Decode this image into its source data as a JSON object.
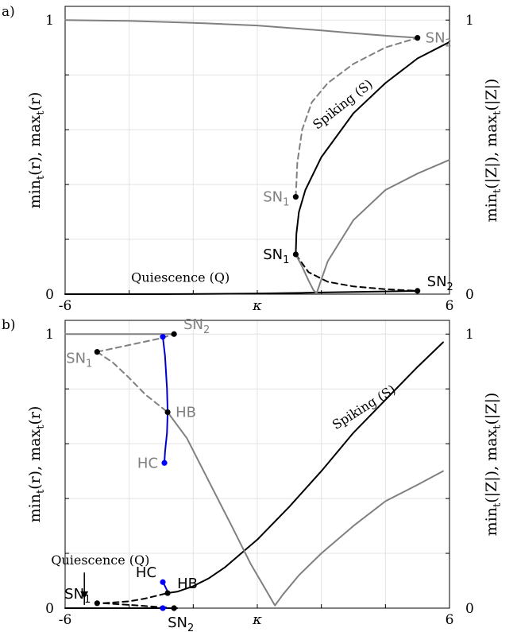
{
  "chart_data": [
    {
      "type": "line",
      "panel_label": "a)",
      "xlabel": "κ",
      "x_ticks": [
        "-6",
        "6"
      ],
      "xlim": [
        -6,
        6
      ],
      "ylabel_left": "min_t(r), max_t(r)",
      "ylabel_left_parts": {
        "pre": "min",
        "sub1": "t",
        "mid": "(r), max",
        "sub2": "t",
        "post": "(r)"
      },
      "y_ticks_left": [
        "0",
        "1"
      ],
      "ylabel_right": "min_t(|Z|), max_t(|Z|)",
      "ylabel_right_parts": {
        "pre": "min",
        "sub1": "t",
        "mid": "(|Z|), max",
        "sub2": "t",
        "post": "(|Z|)"
      },
      "y_ticks_right": [
        "0",
        "1"
      ],
      "ylim": [
        0,
        1.05
      ],
      "grid": true,
      "series": [
        {
          "color": "#000000",
          "dash": false,
          "x": [
            -6,
            -3,
            0,
            1,
            1.5,
            2,
            3,
            4,
            5
          ],
          "y": [
            0,
            0,
            0.002,
            0.004,
            0.005,
            0.006,
            0.008,
            0.01,
            0.012
          ]
        },
        {
          "color": "#000000",
          "dash": true,
          "x": [
            1.2,
            1.6,
            2.2,
            3,
            4,
            5
          ],
          "y": [
            0.145,
            0.08,
            0.045,
            0.028,
            0.018,
            0.012
          ]
        },
        {
          "color": "#000000",
          "dash": false,
          "x": [
            1.2,
            1.22,
            1.3,
            1.5,
            2,
            3,
            4,
            5,
            6
          ],
          "y": [
            0.145,
            0.22,
            0.3,
            0.38,
            0.5,
            0.66,
            0.77,
            0.86,
            0.92
          ]
        },
        {
          "color": "#808080",
          "dash": false,
          "x": [
            -6,
            -4,
            -2,
            0,
            2,
            3,
            4,
            5
          ],
          "y": [
            1,
            0.997,
            0.99,
            0.98,
            0.962,
            0.952,
            0.943,
            0.935
          ]
        },
        {
          "color": "#808080",
          "dash": true,
          "x": [
            1.2,
            1.25,
            1.4,
            1.7,
            2.2,
            3,
            4,
            5
          ],
          "y": [
            0.355,
            0.48,
            0.6,
            0.7,
            0.77,
            0.84,
            0.9,
            0.935
          ]
        },
        {
          "color": "#808080",
          "dash": false,
          "x": [
            1.2,
            1.4,
            1.6,
            1.75,
            1.85,
            2.2,
            3,
            4,
            5,
            6
          ],
          "y": [
            0.145,
            0.1,
            0.05,
            0.015,
            0.003,
            0.12,
            0.27,
            0.38,
            0.44,
            0.49
          ]
        }
      ],
      "points": [
        {
          "label": "SN",
          "sub": "2",
          "x": 5,
          "y": 0.935,
          "color": "#000000",
          "label_color": "#808080",
          "anchor": "right"
        },
        {
          "label": "SN",
          "sub": "1",
          "x": 1.2,
          "y": 0.355,
          "color": "#000000",
          "label_color": "#808080",
          "anchor": "left"
        },
        {
          "label": "SN",
          "sub": "1",
          "x": 1.2,
          "y": 0.145,
          "color": "#000000",
          "label_color": "#000000",
          "anchor": "left"
        },
        {
          "label": "SN",
          "sub": "2",
          "x": 5,
          "y": 0.012,
          "color": "#000000",
          "label_color": "#000000",
          "anchor": "above-right"
        }
      ],
      "annotations": [
        {
          "text": "Spiking (S)",
          "x": 2.75,
          "y": 0.68,
          "rotate": -38
        },
        {
          "text": "Quiescence (Q)",
          "x": -2.4,
          "y": 0.045,
          "rotate": 0
        }
      ]
    },
    {
      "type": "line",
      "panel_label": "b)",
      "xlabel": "κ",
      "x_ticks": [
        "-6",
        "6"
      ],
      "xlim": [
        -6,
        6
      ],
      "ylabel_left": "min_t(r), max_t(r)",
      "ylabel_left_parts": {
        "pre": "min",
        "sub1": "t",
        "mid": "(r), max",
        "sub2": "t",
        "post": "(r)"
      },
      "y_ticks_left": [
        "0",
        "1"
      ],
      "ylabel_right": "min_t(|Z|), max_t(|Z|)",
      "ylabel_right_parts": {
        "pre": "min",
        "sub1": "t",
        "mid": "(|Z|), max",
        "sub2": "t",
        "post": "(|Z|)"
      },
      "y_ticks_right": [
        "0",
        "1"
      ],
      "ylim": [
        0,
        1.05
      ],
      "grid": true,
      "series": [
        {
          "color": "#000000",
          "dash": false,
          "x": [
            -6,
            -4.8,
            -3.5,
            -2.5
          ],
          "y": [
            0,
            0,
            0,
            0
          ]
        },
        {
          "color": "#000000",
          "dash": true,
          "x": [
            -4.8,
            -4,
            -3.5,
            -2.8
          ],
          "y": [
            0.018,
            0.025,
            0.035,
            0.055
          ]
        },
        {
          "color": "#000000",
          "dash": true,
          "x": [
            -4.8,
            -4,
            -3.3,
            -2.8
          ],
          "y": [
            0.018,
            0.012,
            0.006,
            0.002
          ]
        },
        {
          "color": "#000000",
          "dash": false,
          "x": [
            -2.8,
            -2.5,
            -2,
            -1.5,
            -1,
            -0.5,
            0,
            1,
            2,
            3,
            4,
            5,
            5.8
          ],
          "y": [
            0.055,
            0.06,
            0.08,
            0.11,
            0.15,
            0.2,
            0.25,
            0.37,
            0.5,
            0.64,
            0.76,
            0.88,
            0.97
          ]
        },
        {
          "color": "#808080",
          "dash": false,
          "x": [
            -6,
            -4,
            -2.6
          ],
          "y": [
            1,
            1,
            1
          ]
        },
        {
          "color": "#808080",
          "dash": true,
          "x": [
            -5,
            -4,
            -3,
            -2.6
          ],
          "y": [
            0.935,
            0.96,
            0.985,
            1
          ]
        },
        {
          "color": "#808080",
          "dash": true,
          "x": [
            -5,
            -4.5,
            -4,
            -3.5,
            -2.8
          ],
          "y": [
            0.935,
            0.895,
            0.84,
            0.78,
            0.715
          ]
        },
        {
          "color": "#808080",
          "dash": false,
          "x": [
            -2.8,
            -2.2,
            -1.5,
            -0.8,
            -0.2,
            0.3,
            0.55,
            0.8,
            1.3,
            2,
            3,
            4,
            5,
            5.8
          ],
          "y": [
            0.715,
            0.62,
            0.46,
            0.3,
            0.16,
            0.06,
            0.01,
            0.05,
            0.12,
            0.2,
            0.3,
            0.39,
            0.45,
            0.5
          ]
        },
        {
          "color": "#0000cc",
          "dash": false,
          "x": [
            -2.95,
            -2.88,
            -2.82,
            -2.8,
            -2.82,
            -2.88,
            -2.9
          ],
          "y": [
            0.99,
            0.92,
            0.8,
            0.715,
            0.64,
            0.57,
            0.53
          ]
        },
        {
          "color": "#0000cc",
          "dash": false,
          "x": [
            -2.95,
            -2.88,
            -2.82,
            -2.8
          ],
          "y": [
            0.095,
            0.08,
            0.065,
            0.055
          ]
        },
        {
          "color": "#0000cc",
          "dash": false,
          "x": [
            -2.95,
            -2.9,
            -2.85
          ],
          "y": [
            0.0,
            0.0,
            0.0
          ]
        }
      ],
      "points": [
        {
          "label": "SN",
          "sub": "2",
          "x": -2.6,
          "y": 1,
          "color": "#000000",
          "label_color": "#808080",
          "anchor": "above-right"
        },
        {
          "label": "SN",
          "sub": "1",
          "x": -5,
          "y": 0.935,
          "color": "#000000",
          "label_color": "#808080",
          "anchor": "below-left"
        },
        {
          "label": "HB",
          "sub": "",
          "x": -2.8,
          "y": 0.715,
          "color": "#000000",
          "label_color": "#808080",
          "anchor": "right"
        },
        {
          "label": "HC",
          "sub": "",
          "x": -2.9,
          "y": 0.53,
          "color": "#0000ff",
          "label_color": "#808080",
          "anchor": "left"
        },
        {
          "label": "",
          "sub": "",
          "x": -2.95,
          "y": 0.99,
          "color": "#0000ff",
          "label_color": "#808080",
          "anchor": "left"
        },
        {
          "label": "HB",
          "sub": "",
          "x": -2.8,
          "y": 0.055,
          "color": "#000000",
          "label_color": "#000000",
          "anchor": "above-right"
        },
        {
          "label": "HC",
          "sub": "",
          "x": -2.95,
          "y": 0.095,
          "color": "#0000ff",
          "label_color": "#000000",
          "anchor": "above-left"
        },
        {
          "label": "",
          "sub": "",
          "x": -2.95,
          "y": 0.0,
          "color": "#0000ff",
          "label_color": "#000000",
          "anchor": "left"
        },
        {
          "label": "SN",
          "sub": "1",
          "x": -5,
          "y": 0.018,
          "color": "#000000",
          "label_color": "#000000",
          "anchor": "above-left"
        },
        {
          "label": "SN",
          "sub": "2",
          "x": -2.6,
          "y": 0,
          "color": "#000000",
          "label_color": "#000000",
          "anchor": "below"
        }
      ],
      "annotations": [
        {
          "text": "Spiking (S)",
          "x": 3.4,
          "y": 0.72,
          "rotate": -32
        },
        {
          "text": "Quiescence (Q)",
          "x": -4.9,
          "y": 0.16,
          "rotate": 0
        }
      ],
      "arrow": {
        "from": [
          -5.4,
          0.13
        ],
        "to": [
          -5.4,
          0.035
        ]
      }
    }
  ]
}
